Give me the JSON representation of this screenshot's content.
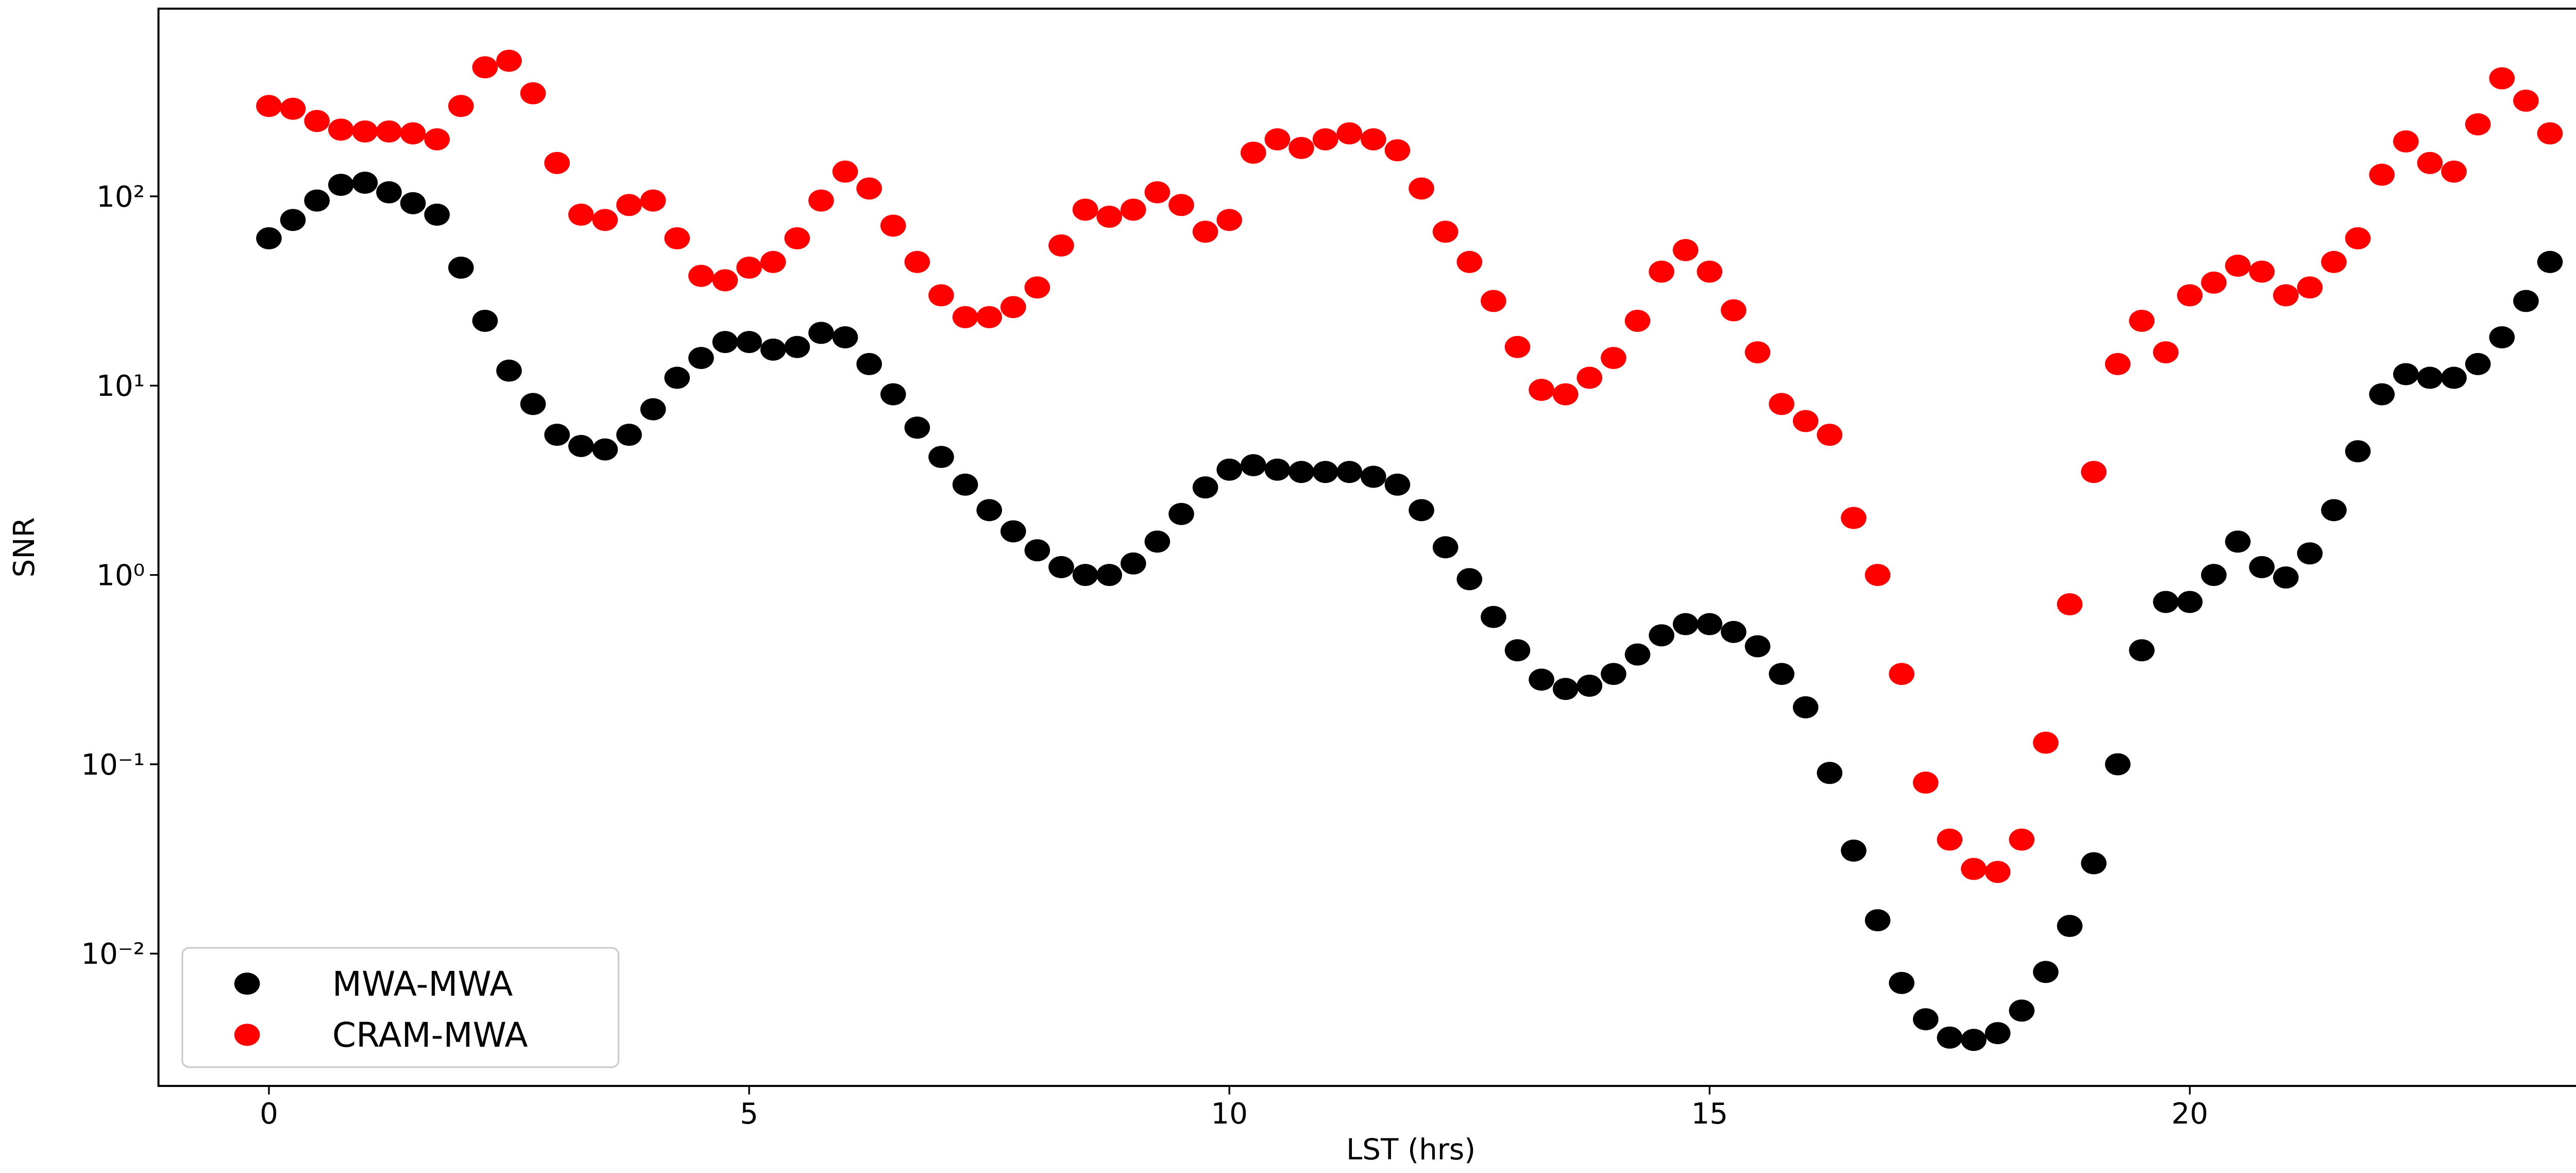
{
  "chart_data": {
    "type": "scatter",
    "xlabel": "LST (hrs)",
    "ylabel": "SNR",
    "yscale": "log",
    "xlim": [
      -1.15,
      24.93
    ],
    "ylim": [
      0.002,
      980
    ],
    "xticks": [
      0,
      5,
      10,
      15,
      20
    ],
    "yticks": [
      {
        "value": 0.01,
        "label": "10⁻²"
      },
      {
        "value": 0.1,
        "label": "10⁻¹"
      },
      {
        "value": 1,
        "label": "10⁰"
      },
      {
        "value": 10,
        "label": "10¹"
      },
      {
        "value": 100,
        "label": "10²"
      }
    ],
    "legend": "lower left",
    "x": [
      0,
      0.25,
      0.5,
      0.75,
      1,
      1.25,
      1.5,
      1.75,
      2,
      2.25,
      2.5,
      2.75,
      3,
      3.25,
      3.5,
      3.75,
      4,
      4.25,
      4.5,
      4.75,
      5,
      5.25,
      5.5,
      5.75,
      6,
      6.25,
      6.5,
      6.75,
      7,
      7.25,
      7.5,
      7.75,
      8,
      8.25,
      8.5,
      8.75,
      9,
      9.25,
      9.5,
      9.75,
      10,
      10.25,
      10.5,
      10.75,
      11,
      11.25,
      11.5,
      11.75,
      12,
      12.25,
      12.5,
      12.75,
      13,
      13.25,
      13.5,
      13.75,
      14,
      14.25,
      14.5,
      14.75,
      15,
      15.25,
      15.5,
      15.75,
      16,
      16.25,
      16.5,
      16.75,
      17,
      17.25,
      17.5,
      17.75,
      18,
      18.25,
      18.5,
      18.75,
      19,
      19.25,
      19.5,
      19.75,
      20,
      20.25,
      20.5,
      20.75,
      21,
      21.25,
      21.5,
      21.75,
      22,
      22.25,
      22.5,
      22.75,
      23,
      23.25,
      23.5,
      23.75
    ],
    "series": [
      {
        "name": "MWA-MWA",
        "color": "#000000",
        "values": [
          60,
          75,
          95,
          115,
          118,
          105,
          92,
          80,
          42,
          22,
          12,
          8,
          5.5,
          4.8,
          4.6,
          5.5,
          7.5,
          11,
          14,
          17,
          17,
          15.5,
          16,
          19,
          18,
          13,
          9,
          6,
          4.2,
          3,
          2.2,
          1.7,
          1.35,
          1.1,
          1.0,
          1.0,
          1.15,
          1.5,
          2.1,
          2.9,
          3.6,
          3.8,
          3.6,
          3.5,
          3.5,
          3.5,
          3.3,
          3.0,
          2.2,
          1.4,
          0.95,
          0.6,
          0.4,
          0.28,
          0.25,
          0.26,
          0.3,
          0.38,
          0.48,
          0.55,
          0.55,
          0.5,
          0.42,
          0.3,
          0.2,
          0.09,
          0.035,
          0.015,
          0.007,
          0.0045,
          0.0036,
          0.0035,
          0.0038,
          0.005,
          0.008,
          0.014,
          0.03,
          0.1,
          0.4,
          0.72,
          0.72,
          1.0,
          1.5,
          1.1,
          0.97,
          1.3,
          2.2,
          4.5,
          9,
          11.5,
          11,
          11,
          13,
          18,
          28,
          45
        ]
      },
      {
        "name": "CRAM-MWA",
        "color": "#ff0000",
        "values": [
          300,
          290,
          250,
          225,
          220,
          220,
          215,
          200,
          300,
          480,
          520,
          350,
          150,
          80,
          75,
          90,
          95,
          60,
          38,
          36,
          42,
          45,
          60,
          95,
          135,
          110,
          70,
          45,
          30,
          23,
          23,
          26,
          33,
          55,
          85,
          78,
          85,
          105,
          90,
          65,
          75,
          170,
          200,
          180,
          200,
          215,
          200,
          175,
          110,
          65,
          45,
          28,
          16,
          9.5,
          9,
          11,
          14,
          22,
          40,
          52,
          40,
          25,
          15,
          8,
          6.5,
          5.5,
          2.0,
          1.0,
          0.3,
          0.08,
          0.04,
          0.028,
          0.027,
          0.04,
          0.13,
          0.7,
          3.5,
          13,
          22,
          15,
          30,
          35,
          43,
          40,
          30,
          33,
          45,
          60,
          130,
          195,
          150,
          135,
          240,
          420,
          320,
          215
        ]
      }
    ]
  }
}
